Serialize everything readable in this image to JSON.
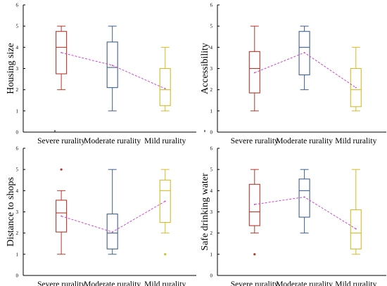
{
  "chart_data": [
    {
      "type": "box",
      "ylabel": "Housing size",
      "ylim": [
        0,
        6
      ],
      "yticks": [
        "0",
        "1",
        "2",
        "3",
        "4",
        "5",
        "6"
      ],
      "categories": [
        "Severe rurality",
        "Moderate rurality",
        "Mild rurality"
      ],
      "colors": [
        "#b5372b",
        "#3f5f8e",
        "#d4bc28"
      ],
      "boxes": [
        {
          "min": 2,
          "q1": 2.75,
          "median": 4,
          "q3": 4.75,
          "max": 5,
          "mean": 3.75,
          "outliers": []
        },
        {
          "min": 1,
          "q1": 2.1,
          "median": 3.05,
          "q3": 4.25,
          "max": 5,
          "mean": 3.15,
          "outliers": []
        },
        {
          "min": 1,
          "q1": 1.25,
          "median": 2,
          "q3": 3,
          "max": 4,
          "mean": 2.05,
          "outliers": []
        }
      ]
    },
    {
      "type": "box",
      "ylabel": "Accessibility",
      "ylim": [
        0,
        6
      ],
      "yticks": [
        "0",
        "1",
        "2",
        "3",
        "4",
        "5",
        "6"
      ],
      "categories": [
        "Severe rurality",
        "Moderate rurality",
        "Mild rurality"
      ],
      "colors": [
        "#b5372b",
        "#3f5f8e",
        "#d4bc28"
      ],
      "boxes": [
        {
          "min": 1,
          "q1": 1.85,
          "median": 3,
          "q3": 3.8,
          "max": 5,
          "mean": 2.8,
          "outliers": []
        },
        {
          "min": 2,
          "q1": 2.7,
          "median": 4,
          "q3": 4.75,
          "max": 5,
          "mean": 3.75,
          "outliers": []
        },
        {
          "min": 1,
          "q1": 1.2,
          "median": 2,
          "q3": 3,
          "max": 4,
          "mean": 2.1,
          "outliers": []
        }
      ]
    },
    {
      "type": "box",
      "ylabel": "Distance to shops",
      "ylim": [
        0,
        6
      ],
      "yticks": [
        "0",
        "1",
        "2",
        "3",
        "4",
        "5",
        "6"
      ],
      "categories": [
        "Severe rurality",
        "Moderate rurality",
        "Mild rurality"
      ],
      "colors": [
        "#b5372b",
        "#3f5f8e",
        "#d4bc28"
      ],
      "boxes": [
        {
          "min": 1,
          "q1": 2.05,
          "median": 2.95,
          "q3": 3.55,
          "max": 4,
          "mean": 2.8,
          "outliers": [
            5
          ]
        },
        {
          "min": 1,
          "q1": 1.25,
          "median": 2,
          "q3": 2.9,
          "max": 5,
          "mean": 2.05,
          "outliers": []
        },
        {
          "min": 2,
          "q1": 2.5,
          "median": 4,
          "q3": 4.5,
          "max": 5,
          "mean": 3.5,
          "outliers": [
            1
          ]
        }
      ]
    },
    {
      "type": "box",
      "ylabel": "Safe drinking water",
      "ylim": [
        0,
        6
      ],
      "yticks": [
        "0",
        "1",
        "2",
        "3",
        "4",
        "5",
        "6"
      ],
      "categories": [
        "Severe rurality",
        "Moderate rurality",
        "Mild rurality"
      ],
      "colors": [
        "#b5372b",
        "#3f5f8e",
        "#d4bc28"
      ],
      "boxes": [
        {
          "min": 2,
          "q1": 2.35,
          "median": 3,
          "q3": 4.3,
          "max": 5,
          "mean": 3.35,
          "outliers": [
            1
          ]
        },
        {
          "min": 2,
          "q1": 2.75,
          "median": 4,
          "q3": 4.55,
          "max": 5,
          "mean": 3.7,
          "outliers": []
        },
        {
          "min": 1,
          "q1": 1.25,
          "median": 2,
          "q3": 3.1,
          "max": 5,
          "mean": 2.2,
          "outliers": []
        }
      ]
    }
  ]
}
